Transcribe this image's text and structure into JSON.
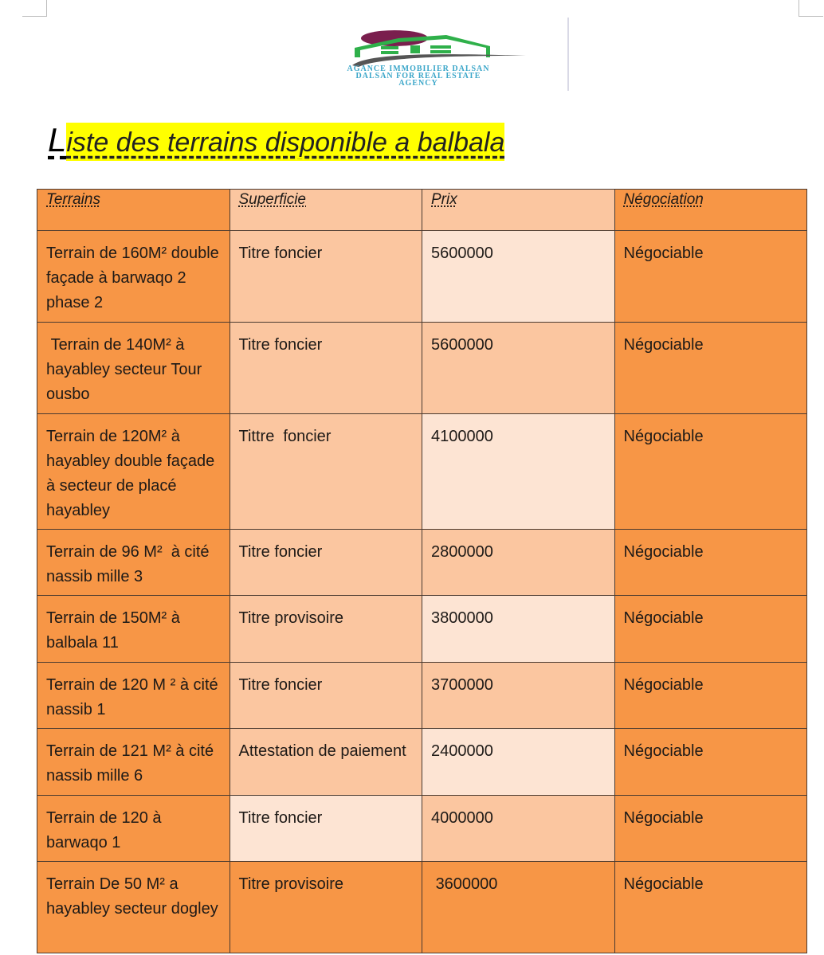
{
  "logo": {
    "line1": "AGANCE IMMOBILIER DALSAN",
    "line2": "DALSAN FOR REAL ESTATE",
    "line3": "AGENCY"
  },
  "title": {
    "first_letter": "L",
    "rest": "iste des terrains disponible a balbala"
  },
  "colors": {
    "dark_orange": "#f79646",
    "peach": "#fbc6a0",
    "light_peach": "#fde4d3",
    "highlight": "#ffff00"
  },
  "table": {
    "headers": [
      "Terrains",
      "Superficie",
      "Prix",
      "Négociation"
    ],
    "header_shades": [
      "D",
      "P",
      "P",
      "D"
    ],
    "rows": [
      {
        "cells": [
          "Terrain de 160M² double façade à barwaqo 2 phase 2",
          "Titre foncier",
          "5600000",
          "Négociable"
        ],
        "shades": [
          "D",
          "P",
          "L",
          "D"
        ]
      },
      {
        "cells": [
          " Terrain de 140M² à hayabley secteur Tour ousbo",
          "Titre foncier",
          "5600000",
          "Négociable"
        ],
        "shades": [
          "D",
          "P",
          "P",
          "D"
        ]
      },
      {
        "cells": [
          "Terrain de 120M² à hayabley double façade à secteur de placé hayabley",
          "Tittre  foncier",
          "4100000",
          "Négociable"
        ],
        "shades": [
          "D",
          "P",
          "L",
          "D"
        ]
      },
      {
        "cells": [
          "Terrain de 96 M²  à cité nassib mille 3",
          "Titre foncier",
          "2800000",
          "Négociable"
        ],
        "shades": [
          "D",
          "P",
          "P",
          "D"
        ]
      },
      {
        "cells": [
          "Terrain de 150M² à balbala 11",
          "Titre provisoire",
          "3800000",
          "Négociable"
        ],
        "shades": [
          "D",
          "P",
          "L",
          "D"
        ]
      },
      {
        "cells": [
          "Terrain de 120 M ² à cité nassib 1",
          "Titre foncier",
          "3700000",
          "Négociable"
        ],
        "shades": [
          "D",
          "P",
          "P",
          "D"
        ]
      },
      {
        "cells": [
          "Terrain de 121 M² à cité nassib mille 6",
          "Attestation de paiement",
          "2400000",
          "Négociable"
        ],
        "shades": [
          "D",
          "P",
          "L",
          "D"
        ]
      },
      {
        "cells": [
          "Terrain de 120 à barwaqo 1",
          "Titre foncier",
          "4000000",
          "Négociable"
        ],
        "shades": [
          "D",
          "L",
          "P",
          "D"
        ]
      },
      {
        "cells": [
          "Terrain De 50 M² a hayabley secteur dogley",
          "Titre provisoire",
          " 3600000",
          "Négociable"
        ],
        "shades": [
          "D",
          "D",
          "D",
          "D"
        ]
      }
    ]
  }
}
